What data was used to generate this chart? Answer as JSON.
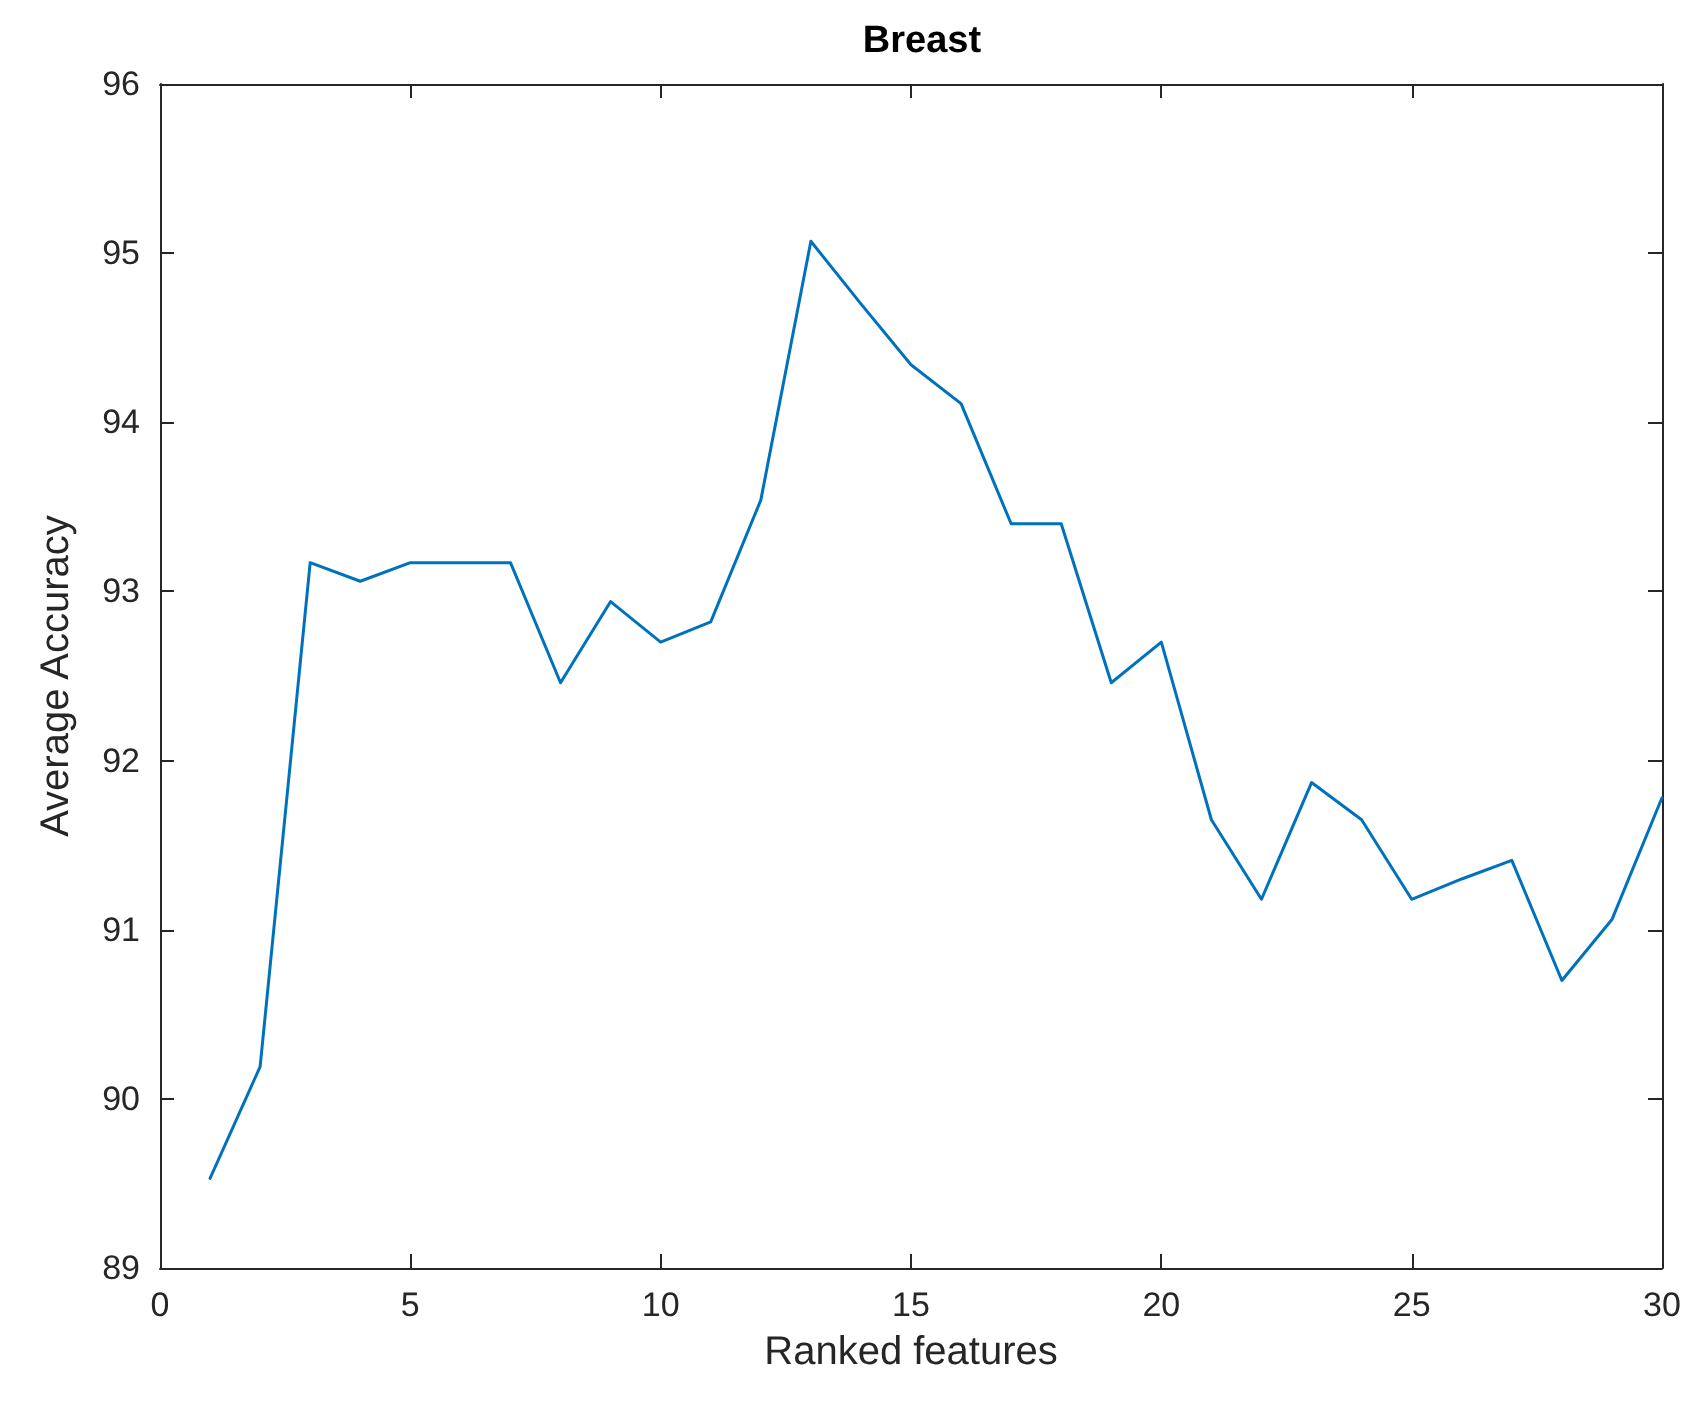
{
  "chart_data": {
    "type": "line",
    "title": "Breast",
    "xlabel": "Ranked features",
    "ylabel": "Average Accuracy",
    "x": [
      1,
      2,
      3,
      4,
      5,
      6,
      7,
      8,
      9,
      10,
      11,
      12,
      13,
      14,
      15,
      16,
      17,
      18,
      19,
      20,
      21,
      22,
      23,
      24,
      25,
      26,
      27,
      28,
      29,
      30
    ],
    "series": [
      {
        "color": "#0072bd",
        "values": [
          89.53,
          90.19,
          93.17,
          93.06,
          93.17,
          93.17,
          93.17,
          92.46,
          92.94,
          92.7,
          92.82,
          93.54,
          95.07,
          94.7,
          94.34,
          94.11,
          93.4,
          93.4,
          92.46,
          92.7,
          91.65,
          91.18,
          91.87,
          91.65,
          91.18,
          91.3,
          91.41,
          90.7,
          91.06,
          91.78
        ]
      }
    ],
    "xlim": [
      0,
      30
    ],
    "xticks": [
      0,
      5,
      10,
      15,
      20,
      25,
      30
    ],
    "ylim": [
      89,
      96
    ],
    "yticks": [
      89,
      90,
      91,
      92,
      93,
      94,
      95,
      96
    ],
    "grid": false,
    "marker": "none",
    "line_style": "solid"
  }
}
